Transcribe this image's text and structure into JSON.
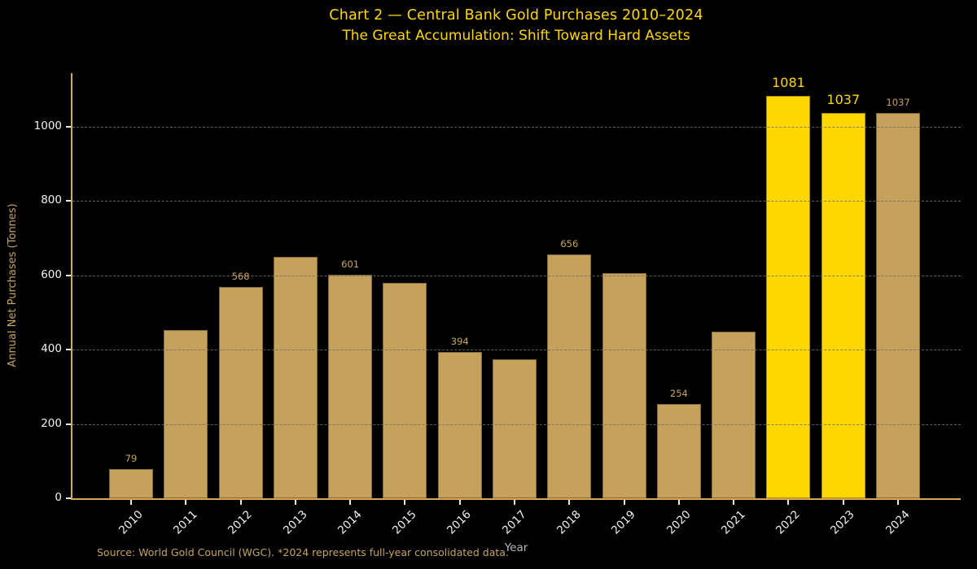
{
  "title": "Chart 2 — Central Bank Gold Purchases 2010–2024",
  "subtitle": "The Great Accumulation: Shift Toward Hard Assets",
  "source_note": "Source: World Gold Council (WGC). *2024 represents full-year consolidated data.",
  "colors": {
    "background": "#000000",
    "title_gold": "#FFD700",
    "bar_tan": "#C6A15C",
    "bar_highlight": "#FFD700",
    "spine_tan": "#D9A74F",
    "value_label_tan": "#C9A45E",
    "value_label_gold": "#FFD700",
    "tick_text": "#F2F2F2",
    "xlabel_gray": "#B8B8B8",
    "grid_gray": "#6F6F6F"
  },
  "chart_data": {
    "type": "bar",
    "title": "Chart 2 — Central Bank Gold Purchases 2010–2024",
    "subtitle": "The Great Accumulation: Shift Toward Hard Assets",
    "xlabel": "Year",
    "ylabel": "Annual Net Purchases (Tonnes)",
    "categories": [
      "2010",
      "2011",
      "2012",
      "2013",
      "2014",
      "2015",
      "2016",
      "2017",
      "2018",
      "2019",
      "2020",
      "2021",
      "2022",
      "2023",
      "2024"
    ],
    "values": [
      79,
      452,
      568,
      650,
      601,
      579,
      394,
      374,
      656,
      605,
      254,
      447,
      1081,
      1037,
      1037
    ],
    "bar_value_labels": [
      "79",
      "",
      "568",
      "",
      "601",
      "",
      "394",
      "",
      "656",
      "",
      "254",
      "",
      "1081",
      "1037",
      "1037"
    ],
    "label_styles": [
      "small",
      "",
      "small",
      "",
      "small",
      "",
      "small",
      "",
      "small",
      "",
      "small",
      "",
      "large",
      "large",
      "small"
    ],
    "highlighted_categories": [
      "2022",
      "2023"
    ],
    "yticks": [
      0,
      200,
      400,
      600,
      800,
      1000
    ],
    "ylim": [
      0,
      1143
    ],
    "grid": "horizontal-dashed, drawn over bars",
    "legend": "none"
  }
}
